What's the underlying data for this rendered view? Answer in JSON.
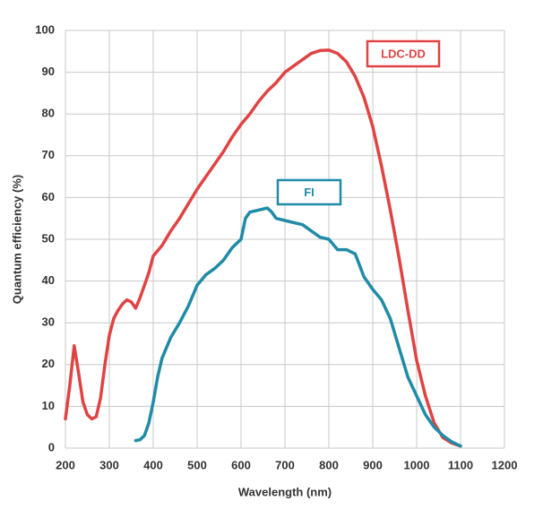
{
  "chart_data": {
    "type": "line",
    "xlabel": "Wavelength (nm)",
    "ylabel": "Quantum efficiency (%)",
    "xlim": [
      200,
      1200
    ],
    "xticks": [
      200,
      300,
      400,
      500,
      600,
      700,
      800,
      900,
      1000,
      1100,
      1200
    ],
    "ylim": [
      0,
      100
    ],
    "yticks": [
      0,
      10,
      20,
      30,
      40,
      50,
      60,
      70,
      80,
      90,
      100
    ],
    "grid": true,
    "series": [
      {
        "name": "LDC-DD",
        "color": "#e04343",
        "x": [
          200,
          210,
          220,
          230,
          240,
          250,
          260,
          270,
          280,
          290,
          300,
          310,
          320,
          330,
          340,
          350,
          360,
          370,
          380,
          390,
          400,
          420,
          440,
          460,
          480,
          500,
          520,
          540,
          560,
          580,
          600,
          620,
          640,
          660,
          680,
          700,
          720,
          740,
          760,
          780,
          800,
          820,
          840,
          860,
          880,
          900,
          920,
          940,
          960,
          980,
          1000,
          1020,
          1040,
          1060,
          1080,
          1100
        ],
        "values": [
          7,
          15,
          24.5,
          18,
          11,
          8,
          7,
          7.5,
          12,
          20,
          27,
          31,
          33,
          34.5,
          35.5,
          35,
          33.5,
          36,
          39,
          42,
          46,
          48.5,
          52,
          55,
          58.5,
          62,
          65,
          68,
          71,
          74.5,
          77.5,
          80,
          83,
          85.5,
          87.5,
          90,
          91.5,
          93,
          94.5,
          95.2,
          95.3,
          94.5,
          92.5,
          89,
          84,
          77,
          67.5,
          57,
          45.5,
          33,
          21,
          12.5,
          6,
          2.5,
          1.2,
          0.5
        ]
      },
      {
        "name": "FI",
        "color": "#1f8ba7",
        "x": [
          360,
          370,
          380,
          390,
          400,
          410,
          420,
          440,
          460,
          480,
          500,
          520,
          540,
          560,
          580,
          600,
          610,
          620,
          640,
          660,
          670,
          680,
          700,
          720,
          740,
          760,
          780,
          800,
          820,
          840,
          860,
          880,
          900,
          920,
          940,
          960,
          980,
          1000,
          1020,
          1040,
          1060,
          1080,
          1100
        ],
        "values": [
          1.8,
          2,
          3,
          6,
          11,
          17,
          21.5,
          26.5,
          30,
          34,
          39,
          41.5,
          43,
          45,
          48,
          50,
          55,
          56.5,
          57,
          57.5,
          56.5,
          55,
          54.5,
          54,
          53.5,
          52,
          50.5,
          50,
          47.5,
          47.5,
          46.5,
          41,
          38,
          35.5,
          31,
          24,
          17,
          12.5,
          8,
          5,
          3,
          1.5,
          0.5
        ]
      }
    ]
  }
}
